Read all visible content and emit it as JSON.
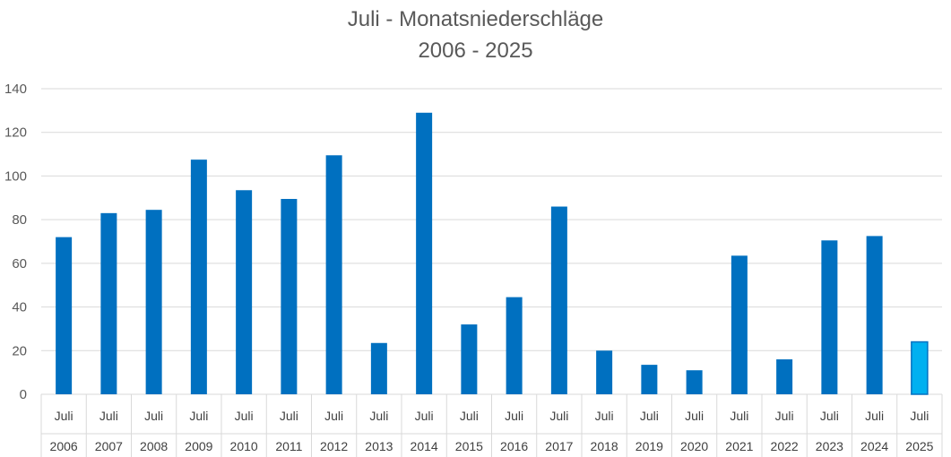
{
  "chart_data": {
    "type": "bar",
    "title": "Juli - Monatsniederschläge",
    "subtitle": "2006 - 2025",
    "categories_level1": [
      "Juli",
      "Juli",
      "Juli",
      "Juli",
      "Juli",
      "Juli",
      "Juli",
      "Juli",
      "Juli",
      "Juli",
      "Juli",
      "Juli",
      "Juli",
      "Juli",
      "Juli",
      "Juli",
      "Juli",
      "Juli",
      "Juli",
      "Juli"
    ],
    "categories_level2": [
      "2006",
      "2007",
      "2008",
      "2009",
      "2010",
      "2011",
      "2012",
      "2013",
      "2014",
      "2015",
      "2016",
      "2017",
      "2018",
      "2019",
      "2020",
      "2021",
      "2022",
      "2023",
      "2024",
      "2025"
    ],
    "values": [
      72,
      83,
      84.5,
      107.5,
      93.5,
      89.5,
      109.5,
      23.5,
      129,
      32,
      44.5,
      86,
      20,
      13.5,
      11,
      63.5,
      16,
      70.5,
      72.5,
      24
    ],
    "ylim": [
      0,
      140
    ],
    "yticks": [
      0,
      20,
      40,
      60,
      80,
      100,
      120,
      140
    ],
    "grid": true,
    "colors": {
      "bar": "#0070C0",
      "highlight": "#00B0F0",
      "highlight_border": "#0070C0",
      "grid": "#D9D9D9"
    },
    "highlight_category_index": 19
  }
}
